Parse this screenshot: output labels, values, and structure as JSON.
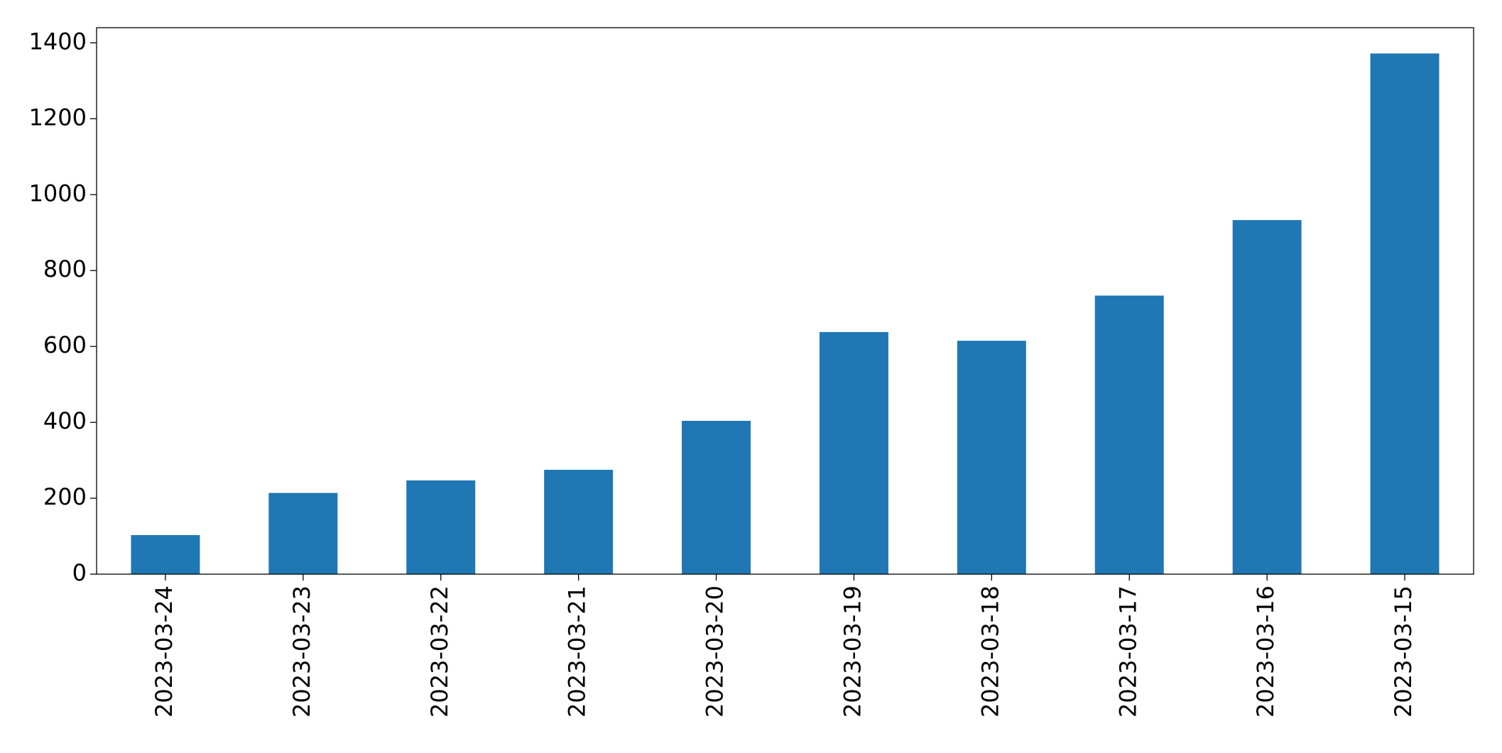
{
  "chart_data": {
    "type": "bar",
    "categories": [
      "2023-03-24",
      "2023-03-23",
      "2023-03-22",
      "2023-03-21",
      "2023-03-20",
      "2023-03-19",
      "2023-03-18",
      "2023-03-17",
      "2023-03-16",
      "2023-03-15"
    ],
    "values": [
      103,
      214,
      247,
      275,
      404,
      638,
      615,
      734,
      933,
      1372
    ],
    "color": "#1f77b4",
    "ylim": [
      0,
      1440
    ],
    "yticks": [
      0,
      200,
      400,
      600,
      800,
      1000,
      1200,
      1400
    ],
    "grid": false
  }
}
